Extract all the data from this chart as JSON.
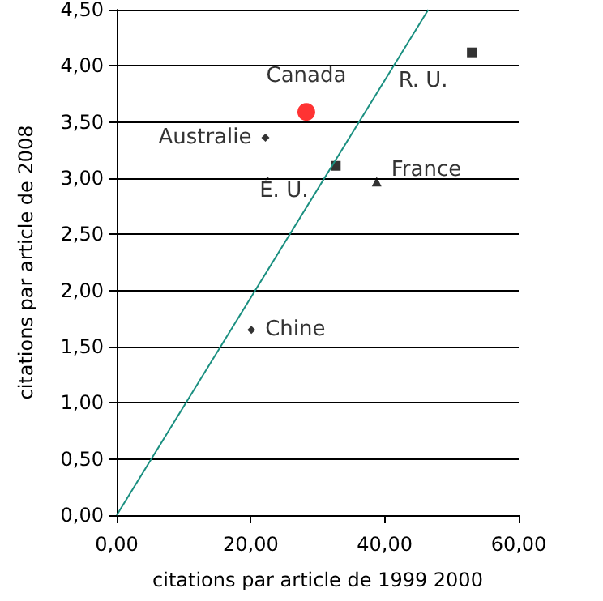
{
  "chart_data": {
    "type": "scatter",
    "xlabel": "citations par article de 1999 2000",
    "ylabel": "citations par article de 2008",
    "series": [
      {
        "name": "Canada",
        "color": "#ff0000",
        "marker": "circle",
        "x": [
          28.3
        ],
        "values": [
          3.59
        ]
      },
      {
        "name": "Australie",
        "color": "#000000",
        "marker": "diamond",
        "x": [
          22.2
        ],
        "values": [
          3.36
        ]
      },
      {
        "name": "É. U.",
        "color": "#000000",
        "marker": "square",
        "x": [
          32.7
        ],
        "values": [
          3.11
        ]
      },
      {
        "name": "France",
        "color": "#000000",
        "marker": "triangle",
        "x": [
          38.8
        ],
        "values": [
          2.97
        ]
      },
      {
        "name": "R. U.",
        "color": "#000000",
        "marker": "square",
        "x": [
          53.0
        ],
        "values": [
          4.12
        ]
      },
      {
        "name": "Chine",
        "color": "#000000",
        "marker": "diamond",
        "x": [
          20.1
        ],
        "values": [
          1.65
        ]
      },
      {
        "type": "line",
        "color": "#1a8f80",
        "marker": "none",
        "x": [
          0,
          46.5
        ],
        "values": [
          0,
          4.5
        ]
      }
    ],
    "xlim": [
      0,
      60
    ],
    "xticks": [
      {
        "value": 0,
        "label": "0,00"
      },
      {
        "value": 20,
        "label": "20,00"
      },
      {
        "value": 40,
        "label": "40,00"
      },
      {
        "value": 60,
        "label": "60,00"
      }
    ],
    "ylim": [
      0,
      4.5
    ],
    "yticks": [
      {
        "value": 0,
        "label": "0,00"
      },
      {
        "value": 0.5,
        "label": "0,50"
      },
      {
        "value": 1,
        "label": "1,00"
      },
      {
        "value": 1.5,
        "label": "1,50"
      },
      {
        "value": 2,
        "label": "2,00"
      },
      {
        "value": 2.5,
        "label": "2,50"
      },
      {
        "value": 3,
        "label": "3,00"
      },
      {
        "value": 3.5,
        "label": "3,50"
      },
      {
        "value": 4,
        "label": "4,00"
      },
      {
        "value": 4.5,
        "label": "4,50"
      }
    ],
    "grid": "y",
    "legend": false
  }
}
